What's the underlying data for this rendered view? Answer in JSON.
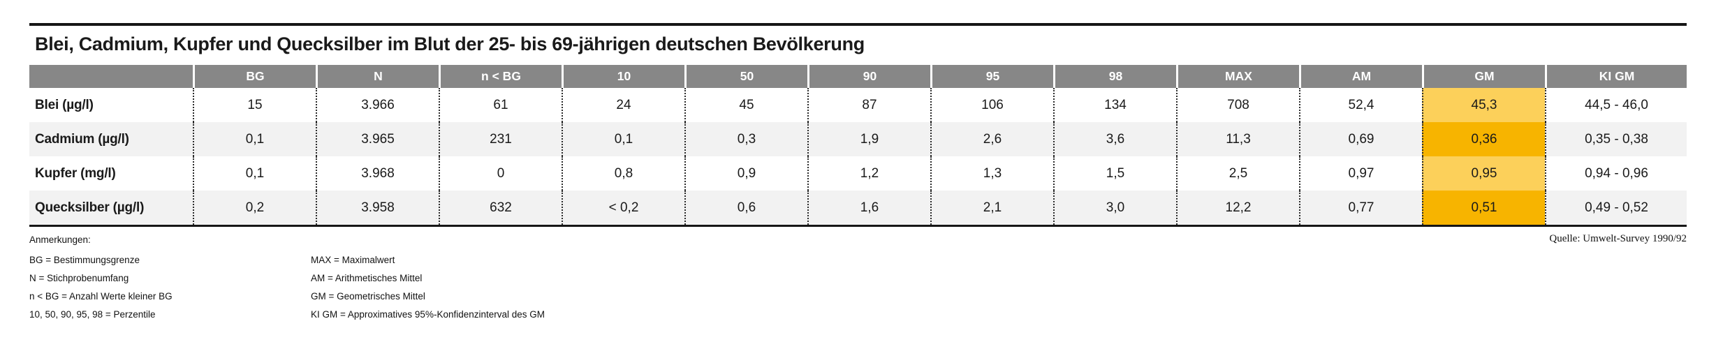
{
  "title": "Blei, Cadmium, Kupfer und Quecksilber im Blut der 25- bis 69-jährigen deutschen Bevölkerung",
  "table": {
    "columns": [
      "BG",
      "N",
      "n < BG",
      "10",
      "50",
      "90",
      "95",
      "98",
      "MAX",
      "AM",
      "GM",
      "KI GM"
    ],
    "gm_column_index": 10,
    "rows": [
      {
        "label": "Blei (µg/l)",
        "values": [
          "15",
          "3.966",
          "61",
          "24",
          "45",
          "87",
          "106",
          "134",
          "708",
          "52,4",
          "45,3",
          "44,5 - 46,0"
        ]
      },
      {
        "label": "Cadmium (µg/l)",
        "values": [
          "0,1",
          "3.965",
          "231",
          "0,1",
          "0,3",
          "1,9",
          "2,6",
          "3,6",
          "11,3",
          "0,69",
          "0,36",
          "0,35 - 0,38"
        ]
      },
      {
        "label": "Kupfer (mg/l)",
        "values": [
          "0,1",
          "3.968",
          "0",
          "0,8",
          "0,9",
          "1,2",
          "1,3",
          "1,5",
          "2,5",
          "0,97",
          "0,95",
          "0,94 - 0,96"
        ]
      },
      {
        "label": "Quecksilber (µg/l)",
        "values": [
          "0,2",
          "3.958",
          "632",
          "< 0,2",
          "0,6",
          "1,6",
          "2,1",
          "3,0",
          "12,2",
          "0,77",
          "0,51",
          "0,49 - 0,52"
        ]
      }
    ]
  },
  "footnotes": {
    "title": "Anmerkungen:",
    "left": [
      "BG = Bestimmungsgrenze",
      "N = Stichprobenumfang",
      "n < BG = Anzahl Werte kleiner BG",
      "10, 50, 90, 95, 98 = Perzentile"
    ],
    "right": [
      "MAX = Maximalwert",
      "AM = Arithmetisches Mittel",
      "GM = Geometrisches Mittel",
      "KI GM = Approximatives 95%-Konfidenzinterval des GM"
    ]
  },
  "source": "Quelle: Umwelt-Survey 1990/92",
  "colors": {
    "header_bg": "#878787",
    "row_alt": "#f2f2f2",
    "gm_light": "#fcd05a",
    "gm_dark": "#f7b400",
    "rule": "#161616"
  }
}
